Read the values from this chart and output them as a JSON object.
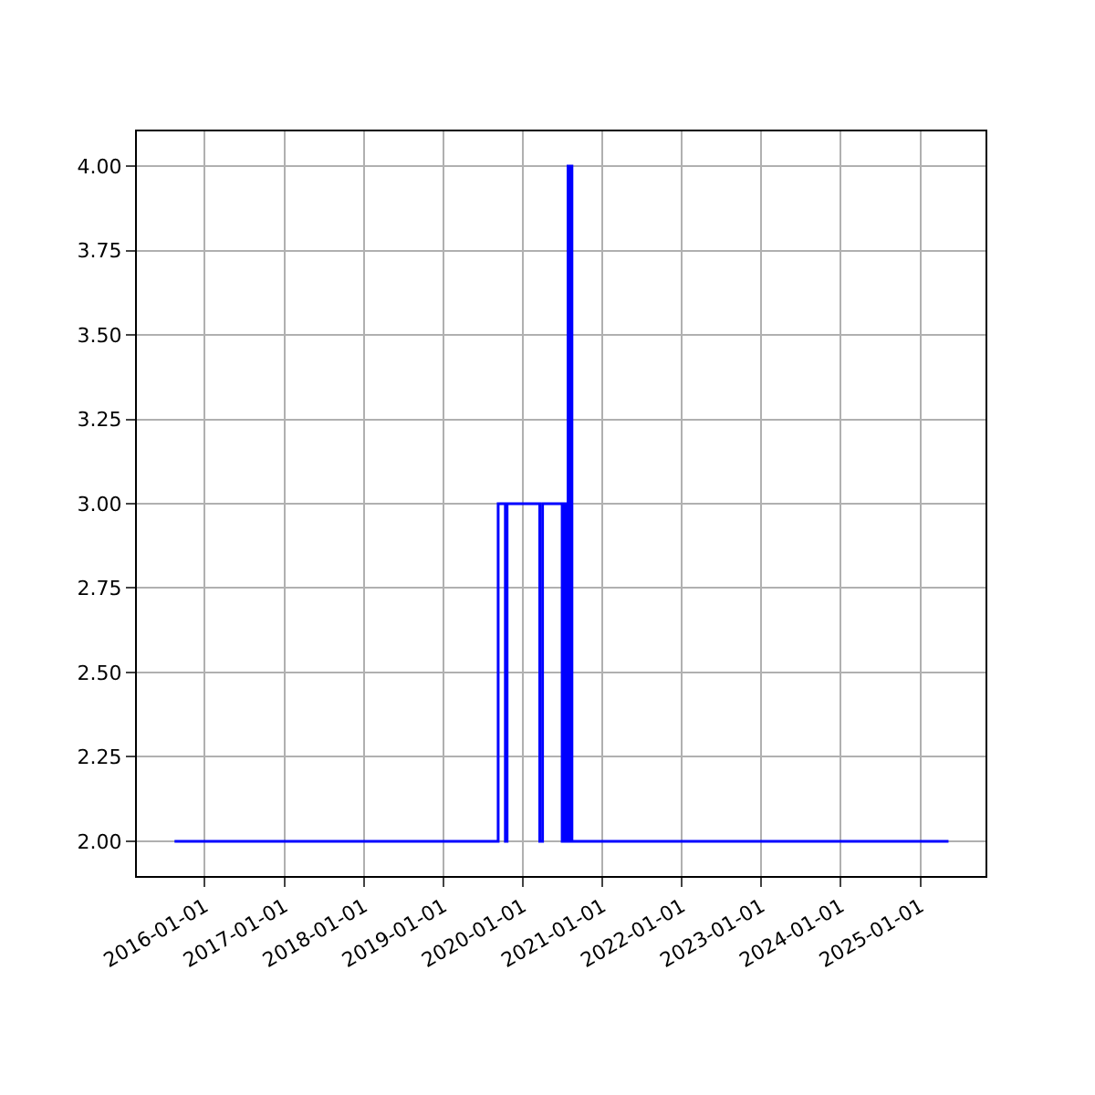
{
  "chart_data": {
    "type": "step",
    "x": [
      "2015-08-15",
      "2019-09-10",
      "2019-10-13",
      "2019-10-21",
      "2020-03-19",
      "2020-04-01",
      "2020-06-30",
      "2020-07-03",
      "2020-07-06",
      "2020-07-09",
      "2020-07-12",
      "2020-07-15",
      "2020-07-19",
      "2020-07-22",
      "2020-07-27",
      "2020-07-31",
      "2020-08-03",
      "2020-08-06",
      "2020-08-09",
      "2020-08-14",
      "2025-05-10"
    ],
    "series": [
      {
        "color": "#0000ff",
        "values": [
          2,
          3,
          2,
          3,
          2,
          3,
          2,
          3,
          2,
          3,
          2,
          3,
          2,
          3,
          4,
          2,
          4,
          2,
          4,
          2,
          2
        ]
      }
    ],
    "xlim": [
      "2015-02-23",
      "2025-10-27"
    ],
    "xticks": [
      "2016-01-01",
      "2017-01-01",
      "2018-01-01",
      "2019-01-01",
      "2020-01-01",
      "2021-01-01",
      "2022-01-01",
      "2023-01-01",
      "2024-01-01",
      "2025-01-01"
    ],
    "ylim": [
      1.897,
      4.103
    ],
    "yticks": [
      {
        "value": 2,
        "label": "2.00"
      },
      {
        "value": 2.25,
        "label": "2.25"
      },
      {
        "value": 2.5,
        "label": "2.50"
      },
      {
        "value": 2.75,
        "label": "2.75"
      },
      {
        "value": 3,
        "label": "3.00"
      },
      {
        "value": 3.25,
        "label": "3.25"
      },
      {
        "value": 3.5,
        "label": "3.50"
      },
      {
        "value": 3.75,
        "label": "3.75"
      },
      {
        "value": 4,
        "label": "4.00"
      }
    ],
    "grid": true,
    "marker": "none",
    "line_style": "solid"
  }
}
